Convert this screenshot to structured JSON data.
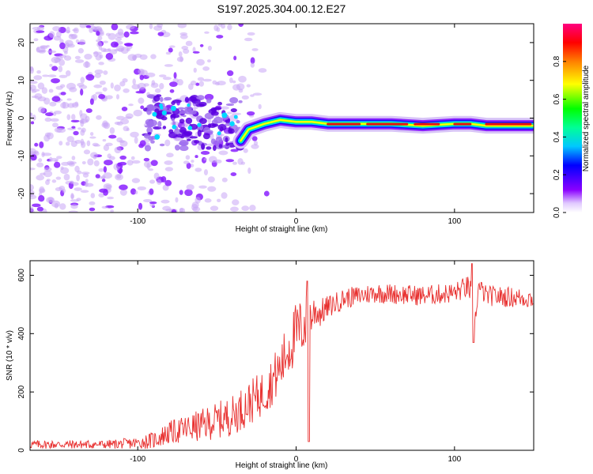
{
  "title": "S197.2025.304.00.12.E27",
  "chart_data": [
    {
      "type": "heatmap",
      "xlabel": "Height of straight line (km)",
      "ylabel": "Frequency (Hz)",
      "xlim": [
        -168,
        150
      ],
      "ylim": [
        -25,
        25
      ],
      "xticks": [
        -100,
        0,
        100
      ],
      "yticks": [
        -20,
        -10,
        0,
        10,
        20
      ],
      "colorbar": {
        "label": "Normalized spectral amplitude",
        "range": [
          0,
          1
        ],
        "ticks": [
          0.0,
          0.2,
          0.4,
          0.6,
          0.8
        ],
        "colormap": [
          "#ffffff",
          "#8000ff",
          "#0000ff",
          "#00c0ff",
          "#00ff80",
          "#00ff00",
          "#ffff00",
          "#ff8000",
          "#ff0000",
          "#ff0080"
        ]
      },
      "ridge": {
        "x": [
          -35,
          -30,
          -20,
          -10,
          0,
          10,
          20,
          40,
          60,
          80,
          100,
          110,
          120,
          150
        ],
        "frequency": [
          -6,
          -3,
          -1.5,
          -0.5,
          -1,
          -1,
          -1.5,
          -1.5,
          -1.5,
          -2,
          -1.5,
          -1.5,
          -2,
          -2
        ]
      }
    },
    {
      "type": "line",
      "xlabel": "Height of straight line (km)",
      "ylabel": "SNR (10 * v/v)",
      "xlim": [
        -168,
        150
      ],
      "ylim": [
        0,
        650
      ],
      "xticks": [
        -100,
        0,
        100
      ],
      "yticks": [
        0,
        200,
        400,
        600
      ],
      "color": "#e8302f",
      "x": [
        -168,
        -120,
        -100,
        -90,
        -80,
        -60,
        -40,
        -30,
        -20,
        -10,
        -5,
        0,
        5,
        8,
        10,
        12,
        15,
        20,
        30,
        50,
        80,
        100,
        108,
        111,
        112,
        115,
        120,
        150
      ],
      "y": [
        20,
        20,
        25,
        35,
        60,
        85,
        120,
        160,
        200,
        280,
        350,
        400,
        430,
        450,
        460,
        480,
        470,
        490,
        520,
        540,
        530,
        540,
        560,
        540,
        380,
        560,
        530,
        520
      ],
      "noise_amplitude": [
        15,
        15,
        20,
        30,
        40,
        55,
        70,
        75,
        80,
        90,
        100,
        110,
        100,
        90,
        80,
        60,
        50,
        40,
        35,
        35,
        35,
        35,
        40,
        40,
        40,
        35,
        35,
        35
      ]
    }
  ]
}
